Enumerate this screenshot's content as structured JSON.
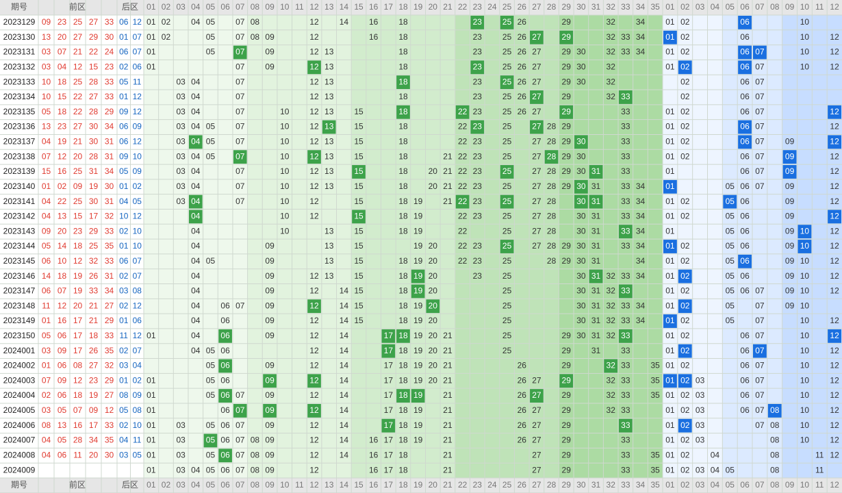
{
  "header": {
    "issue": "期号",
    "front": "前区",
    "back": "后区",
    "front_columns": [
      "01",
      "02",
      "03",
      "04",
      "05",
      "06",
      "07",
      "08",
      "09",
      "10",
      "11",
      "12",
      "13",
      "14",
      "15",
      "16",
      "17",
      "18",
      "19",
      "20",
      "21",
      "22",
      "23",
      "24",
      "25",
      "26",
      "27",
      "28",
      "29",
      "30",
      "31",
      "32",
      "33",
      "34",
      "35"
    ],
    "back_columns": [
      "01",
      "02",
      "03",
      "04",
      "05",
      "06",
      "07",
      "08",
      "09",
      "10",
      "11",
      "12"
    ]
  },
  "rows": [
    {
      "issue": "2023129",
      "front_draw": [
        "09",
        "23",
        "25",
        "27",
        "33"
      ],
      "back_draw": [
        "06",
        "12"
      ],
      "front": [
        "01",
        "02",
        "04",
        "05",
        "07",
        "08",
        "12",
        "14",
        "16",
        "18",
        "26",
        "29",
        "32",
        "34"
      ],
      "front_hit": [
        "23",
        "25"
      ],
      "back": [
        "01",
        "02",
        "10"
      ],
      "back_hit": [
        "06"
      ]
    },
    {
      "issue": "2023130",
      "front_draw": [
        "13",
        "20",
        "27",
        "29",
        "30"
      ],
      "back_draw": [
        "01",
        "07"
      ],
      "front": [
        "01",
        "02",
        "05",
        "07",
        "08",
        "09",
        "12",
        "16",
        "18",
        "23",
        "25",
        "26",
        "32",
        "33",
        "34"
      ],
      "front_hit": [
        "27",
        "29"
      ],
      "back": [
        "02",
        "06",
        "10",
        "12"
      ],
      "back_hit": [
        "01"
      ]
    },
    {
      "issue": "2023131",
      "front_draw": [
        "03",
        "07",
        "21",
        "22",
        "24"
      ],
      "back_draw": [
        "06",
        "07"
      ],
      "front": [
        "01",
        "05",
        "09",
        "12",
        "13",
        "18",
        "23",
        "25",
        "26",
        "27",
        "29",
        "30",
        "32",
        "33",
        "34"
      ],
      "front_hit": [
        "07"
      ],
      "back": [
        "01",
        "02",
        "10",
        "12"
      ],
      "back_hit": [
        "06",
        "07"
      ]
    },
    {
      "issue": "2023132",
      "front_draw": [
        "03",
        "04",
        "12",
        "15",
        "23"
      ],
      "back_draw": [
        "02",
        "06"
      ],
      "front": [
        "01",
        "07",
        "09",
        "13",
        "18",
        "25",
        "26",
        "27",
        "29",
        "30",
        "32"
      ],
      "front_hit": [
        "12",
        "23"
      ],
      "back": [
        "01",
        "07",
        "10",
        "12"
      ],
      "back_hit": [
        "02",
        "06"
      ]
    },
    {
      "issue": "2023133",
      "front_draw": [
        "10",
        "18",
        "25",
        "28",
        "33"
      ],
      "back_draw": [
        "05",
        "11"
      ],
      "front": [
        "03",
        "04",
        "07",
        "12",
        "13",
        "23",
        "26",
        "27",
        "29",
        "30",
        "32"
      ],
      "front_hit": [
        "18",
        "25"
      ],
      "back": [
        "02",
        "06",
        "07"
      ],
      "back_hit": []
    },
    {
      "issue": "2023134",
      "front_draw": [
        "10",
        "15",
        "22",
        "27",
        "33"
      ],
      "back_draw": [
        "01",
        "12"
      ],
      "front": [
        "03",
        "04",
        "07",
        "12",
        "13",
        "18",
        "23",
        "25",
        "26",
        "29",
        "32"
      ],
      "front_hit": [
        "27",
        "33"
      ],
      "back": [
        "02",
        "06",
        "07"
      ],
      "back_hit": []
    },
    {
      "issue": "2023135",
      "front_draw": [
        "05",
        "18",
        "22",
        "28",
        "29"
      ],
      "back_draw": [
        "09",
        "12"
      ],
      "front": [
        "03",
        "04",
        "07",
        "10",
        "12",
        "13",
        "15",
        "23",
        "25",
        "26",
        "27",
        "33"
      ],
      "front_hit": [
        "18",
        "22",
        "29"
      ],
      "back": [
        "01",
        "02",
        "06",
        "07"
      ],
      "back_hit": [
        "12"
      ]
    },
    {
      "issue": "2023136",
      "front_draw": [
        "13",
        "23",
        "27",
        "30",
        "34"
      ],
      "back_draw": [
        "06",
        "09"
      ],
      "front": [
        "03",
        "04",
        "05",
        "07",
        "10",
        "12",
        "15",
        "18",
        "22",
        "25",
        "28",
        "29",
        "33"
      ],
      "front_hit": [
        "13",
        "23",
        "27"
      ],
      "back": [
        "01",
        "02",
        "07",
        "12"
      ],
      "back_hit": [
        "06"
      ]
    },
    {
      "issue": "2023137",
      "front_draw": [
        "04",
        "19",
        "21",
        "30",
        "31"
      ],
      "back_draw": [
        "06",
        "12"
      ],
      "front": [
        "03",
        "05",
        "07",
        "10",
        "12",
        "13",
        "15",
        "18",
        "22",
        "23",
        "25",
        "27",
        "28",
        "29",
        "33"
      ],
      "front_hit": [
        "04",
        "30"
      ],
      "back": [
        "01",
        "02",
        "07",
        "09"
      ],
      "back_hit": [
        "06",
        "12"
      ]
    },
    {
      "issue": "2023138",
      "front_draw": [
        "07",
        "12",
        "20",
        "28",
        "31"
      ],
      "back_draw": [
        "09",
        "10"
      ],
      "front": [
        "03",
        "04",
        "05",
        "10",
        "13",
        "15",
        "18",
        "21",
        "22",
        "23",
        "25",
        "27",
        "29",
        "30",
        "33"
      ],
      "front_hit": [
        "07",
        "12",
        "28"
      ],
      "back": [
        "01",
        "02",
        "06",
        "07",
        "12"
      ],
      "back_hit": [
        "09"
      ]
    },
    {
      "issue": "2023139",
      "front_draw": [
        "15",
        "16",
        "25",
        "31",
        "34"
      ],
      "back_draw": [
        "05",
        "09"
      ],
      "front": [
        "03",
        "04",
        "07",
        "10",
        "12",
        "13",
        "18",
        "20",
        "21",
        "22",
        "23",
        "27",
        "28",
        "29",
        "30",
        "33"
      ],
      "front_hit": [
        "15",
        "25",
        "31"
      ],
      "back": [
        "01",
        "06",
        "07",
        "12"
      ],
      "back_hit": [
        "09"
      ]
    },
    {
      "issue": "2023140",
      "front_draw": [
        "01",
        "02",
        "09",
        "19",
        "30"
      ],
      "back_draw": [
        "01",
        "02"
      ],
      "front": [
        "03",
        "04",
        "07",
        "10",
        "12",
        "13",
        "15",
        "18",
        "20",
        "21",
        "22",
        "23",
        "25",
        "27",
        "28",
        "29",
        "31",
        "33",
        "34"
      ],
      "front_hit": [
        "30"
      ],
      "back": [
        "05",
        "06",
        "07",
        "09",
        "12"
      ],
      "back_hit": [
        "01"
      ]
    },
    {
      "issue": "2023141",
      "front_draw": [
        "04",
        "22",
        "25",
        "30",
        "31"
      ],
      "back_draw": [
        "04",
        "05"
      ],
      "front": [
        "03",
        "07",
        "10",
        "12",
        "15",
        "18",
        "19",
        "21",
        "23",
        "27",
        "28",
        "33",
        "34"
      ],
      "front_hit": [
        "04",
        "22",
        "25",
        "30",
        "31"
      ],
      "back": [
        "01",
        "02",
        "06",
        "09",
        "12"
      ],
      "back_hit": [
        "05"
      ]
    },
    {
      "issue": "2023142",
      "front_draw": [
        "04",
        "13",
        "15",
        "17",
        "32"
      ],
      "back_draw": [
        "10",
        "12"
      ],
      "front": [
        "10",
        "12",
        "18",
        "19",
        "22",
        "23",
        "25",
        "27",
        "28",
        "30",
        "31",
        "33",
        "34"
      ],
      "front_hit": [
        "04",
        "15"
      ],
      "back": [
        "01",
        "02",
        "05",
        "06",
        "09"
      ],
      "back_hit": [
        "12"
      ]
    },
    {
      "issue": "2023143",
      "front_draw": [
        "09",
        "20",
        "23",
        "29",
        "33"
      ],
      "back_draw": [
        "02",
        "10"
      ],
      "front": [
        "04",
        "10",
        "13",
        "15",
        "18",
        "19",
        "22",
        "25",
        "27",
        "28",
        "30",
        "31",
        "34"
      ],
      "front_hit": [
        "33"
      ],
      "back": [
        "01",
        "05",
        "06",
        "09",
        "12"
      ],
      "back_hit": [
        "10"
      ]
    },
    {
      "issue": "2023144",
      "front_draw": [
        "05",
        "14",
        "18",
        "25",
        "35"
      ],
      "back_draw": [
        "01",
        "10"
      ],
      "front": [
        "04",
        "09",
        "13",
        "15",
        "19",
        "20",
        "22",
        "23",
        "27",
        "28",
        "29",
        "30",
        "31",
        "33",
        "34"
      ],
      "front_hit": [
        "25"
      ],
      "back": [
        "02",
        "05",
        "06",
        "09",
        "12"
      ],
      "back_hit": [
        "01",
        "10"
      ]
    },
    {
      "issue": "2023145",
      "front_draw": [
        "06",
        "10",
        "12",
        "32",
        "33"
      ],
      "back_draw": [
        "06",
        "07"
      ],
      "front": [
        "04",
        "05",
        "09",
        "13",
        "15",
        "18",
        "19",
        "20",
        "22",
        "23",
        "25",
        "28",
        "29",
        "30",
        "31",
        "34"
      ],
      "front_hit": [],
      "back": [
        "01",
        "02",
        "05",
        "09",
        "10",
        "12"
      ],
      "back_hit": [
        "06"
      ]
    },
    {
      "issue": "2023146",
      "front_draw": [
        "14",
        "18",
        "19",
        "26",
        "31"
      ],
      "back_draw": [
        "02",
        "07"
      ],
      "front": [
        "04",
        "09",
        "12",
        "13",
        "15",
        "18",
        "20",
        "23",
        "25",
        "30",
        "32",
        "33",
        "34"
      ],
      "front_hit": [
        "19",
        "31"
      ],
      "back": [
        "01",
        "05",
        "06",
        "09",
        "10",
        "12"
      ],
      "back_hit": [
        "02"
      ]
    },
    {
      "issue": "2023147",
      "front_draw": [
        "06",
        "07",
        "19",
        "33",
        "34"
      ],
      "back_draw": [
        "03",
        "08"
      ],
      "front": [
        "04",
        "09",
        "12",
        "14",
        "15",
        "18",
        "20",
        "25",
        "30",
        "31",
        "32"
      ],
      "front_hit": [
        "19",
        "33"
      ],
      "back": [
        "01",
        "02",
        "05",
        "06",
        "07",
        "09",
        "10",
        "12"
      ],
      "back_hit": []
    },
    {
      "issue": "2023148",
      "front_draw": [
        "11",
        "12",
        "20",
        "21",
        "27"
      ],
      "back_draw": [
        "02",
        "12"
      ],
      "front": [
        "04",
        "06",
        "07",
        "09",
        "14",
        "15",
        "18",
        "19",
        "25",
        "30",
        "31",
        "32",
        "33",
        "34"
      ],
      "front_hit": [
        "12",
        "20"
      ],
      "back": [
        "01",
        "05",
        "07",
        "09",
        "10"
      ],
      "back_hit": [
        "02"
      ]
    },
    {
      "issue": "2023149",
      "front_draw": [
        "01",
        "16",
        "17",
        "21",
        "29"
      ],
      "back_draw": [
        "01",
        "06"
      ],
      "front": [
        "04",
        "06",
        "09",
        "12",
        "14",
        "15",
        "18",
        "19",
        "20",
        "25",
        "30",
        "31",
        "32",
        "33",
        "34"
      ],
      "front_hit": [],
      "back": [
        "02",
        "05",
        "07",
        "10",
        "12"
      ],
      "back_hit": [
        "01"
      ]
    },
    {
      "issue": "2023150",
      "front_draw": [
        "05",
        "06",
        "17",
        "18",
        "33"
      ],
      "back_draw": [
        "11",
        "12"
      ],
      "front": [
        "01",
        "04",
        "09",
        "12",
        "14",
        "19",
        "20",
        "21",
        "25",
        "29",
        "30",
        "31",
        "32"
      ],
      "front_hit": [
        "06",
        "17",
        "18",
        "33"
      ],
      "back": [
        "01",
        "02",
        "06",
        "07",
        "10"
      ],
      "back_hit": [
        "12"
      ]
    },
    {
      "issue": "2024001",
      "front_draw": [
        "03",
        "09",
        "17",
        "26",
        "35"
      ],
      "back_draw": [
        "02",
        "07"
      ],
      "front": [
        "04",
        "05",
        "06",
        "12",
        "14",
        "18",
        "19",
        "20",
        "21",
        "25",
        "29",
        "31",
        "33"
      ],
      "front_hit": [
        "17"
      ],
      "back": [
        "01",
        "06",
        "10",
        "12"
      ],
      "back_hit": [
        "02",
        "07"
      ]
    },
    {
      "issue": "2024002",
      "front_draw": [
        "01",
        "06",
        "08",
        "27",
        "32"
      ],
      "back_draw": [
        "03",
        "04"
      ],
      "front": [
        "05",
        "09",
        "12",
        "14",
        "17",
        "18",
        "19",
        "20",
        "21",
        "26",
        "29",
        "33",
        "35"
      ],
      "front_hit": [
        "06",
        "32"
      ],
      "back": [
        "01",
        "02",
        "06",
        "07",
        "10",
        "12"
      ],
      "back_hit": []
    },
    {
      "issue": "2024003",
      "front_draw": [
        "07",
        "09",
        "12",
        "23",
        "29"
      ],
      "back_draw": [
        "01",
        "02"
      ],
      "front": [
        "01",
        "05",
        "06",
        "14",
        "17",
        "18",
        "19",
        "20",
        "21",
        "26",
        "27",
        "32",
        "33",
        "35"
      ],
      "front_hit": [
        "09",
        "12",
        "29"
      ],
      "back": [
        "03",
        "06",
        "07",
        "10",
        "12"
      ],
      "back_hit": [
        "01",
        "02"
      ]
    },
    {
      "issue": "2024004",
      "front_draw": [
        "02",
        "06",
        "18",
        "19",
        "27"
      ],
      "back_draw": [
        "08",
        "09"
      ],
      "front": [
        "01",
        "05",
        "07",
        "09",
        "12",
        "14",
        "17",
        "21",
        "26",
        "29",
        "32",
        "33",
        "35"
      ],
      "front_hit": [
        "06",
        "18",
        "19",
        "27"
      ],
      "back": [
        "01",
        "02",
        "03",
        "06",
        "07",
        "10",
        "12"
      ],
      "back_hit": []
    },
    {
      "issue": "2024005",
      "front_draw": [
        "03",
        "05",
        "07",
        "09",
        "12"
      ],
      "back_draw": [
        "05",
        "08"
      ],
      "front": [
        "01",
        "06",
        "14",
        "17",
        "18",
        "19",
        "21",
        "26",
        "27",
        "29",
        "32",
        "33"
      ],
      "front_hit": [
        "07",
        "09",
        "12"
      ],
      "back": [
        "01",
        "02",
        "03",
        "06",
        "07",
        "10",
        "12"
      ],
      "back_hit": [
        "08"
      ]
    },
    {
      "issue": "2024006",
      "front_draw": [
        "08",
        "13",
        "16",
        "17",
        "33"
      ],
      "back_draw": [
        "02",
        "10"
      ],
      "front": [
        "01",
        "03",
        "05",
        "06",
        "07",
        "09",
        "12",
        "14",
        "18",
        "19",
        "21",
        "26",
        "27",
        "29"
      ],
      "front_hit": [
        "17",
        "33"
      ],
      "back": [
        "01",
        "03",
        "07",
        "08",
        "10",
        "12"
      ],
      "back_hit": [
        "02"
      ]
    },
    {
      "issue": "2024007",
      "front_draw": [
        "04",
        "05",
        "28",
        "34",
        "35"
      ],
      "back_draw": [
        "04",
        "11"
      ],
      "front": [
        "01",
        "03",
        "06",
        "07",
        "08",
        "09",
        "12",
        "14",
        "16",
        "17",
        "18",
        "19",
        "21",
        "26",
        "27",
        "29",
        "33"
      ],
      "front_hit": [
        "05"
      ],
      "back": [
        "01",
        "02",
        "03",
        "08",
        "10",
        "12"
      ],
      "back_hit": []
    },
    {
      "issue": "2024008",
      "front_draw": [
        "04",
        "06",
        "11",
        "20",
        "30"
      ],
      "back_draw": [
        "03",
        "05"
      ],
      "front": [
        "01",
        "03",
        "05",
        "07",
        "08",
        "09",
        "12",
        "14",
        "16",
        "17",
        "18",
        "21",
        "27",
        "29",
        "33",
        "35"
      ],
      "front_hit": [
        "06"
      ],
      "back": [
        "01",
        "02",
        "04",
        "08",
        "11",
        "12"
      ],
      "back_hit": []
    },
    {
      "issue": "2024009",
      "front_draw": [],
      "back_draw": [],
      "front": [
        "01",
        "03",
        "04",
        "05",
        "06",
        "07",
        "08",
        "09",
        "12",
        "16",
        "17",
        "18",
        "21",
        "27",
        "29",
        "33",
        "35"
      ],
      "front_hit": [],
      "back": [
        "01",
        "02",
        "03",
        "04",
        "05",
        "08",
        "11"
      ],
      "back_hit": []
    }
  ]
}
